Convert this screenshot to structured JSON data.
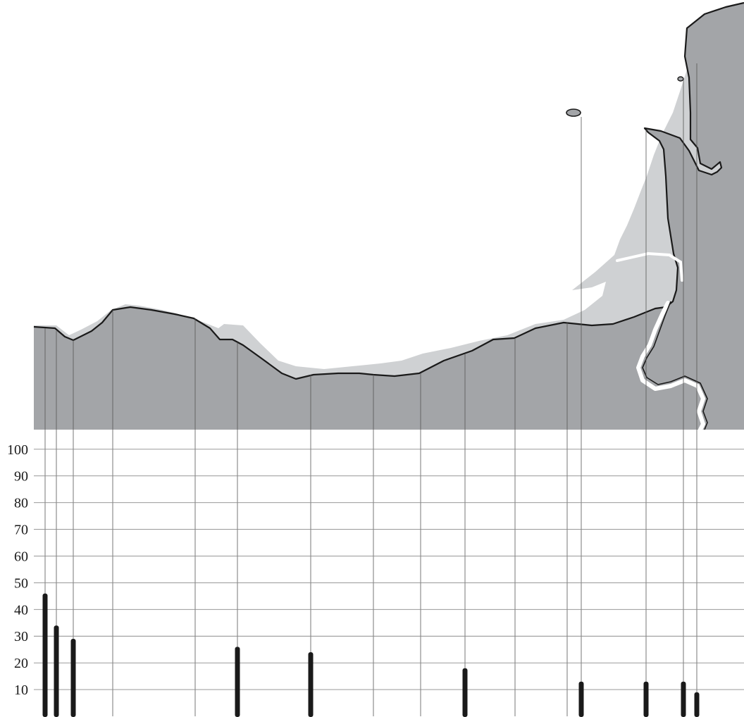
{
  "chart_data": {
    "type": "bar",
    "title": "",
    "xlabel": "",
    "ylabel": "",
    "ylim": [
      0,
      100
    ],
    "yticks": [
      10,
      20,
      30,
      40,
      50,
      60,
      70,
      80,
      90,
      100
    ],
    "ytick_labels": [
      "10",
      "20",
      "30",
      "40",
      "50",
      "60",
      "70",
      "80",
      "90",
      "100"
    ],
    "grid": true,
    "values": [
      46,
      34,
      29,
      26,
      24,
      18,
      13,
      13,
      13,
      9
    ],
    "bar_color": "#1a1a1a"
  },
  "map": {
    "land_color": "#a3a5a8",
    "shallows_color": "#cfd1d3",
    "coastline_color": "#1a1a1a",
    "guide_line_color": "#555555",
    "grid_color": "#8a8a8a"
  }
}
